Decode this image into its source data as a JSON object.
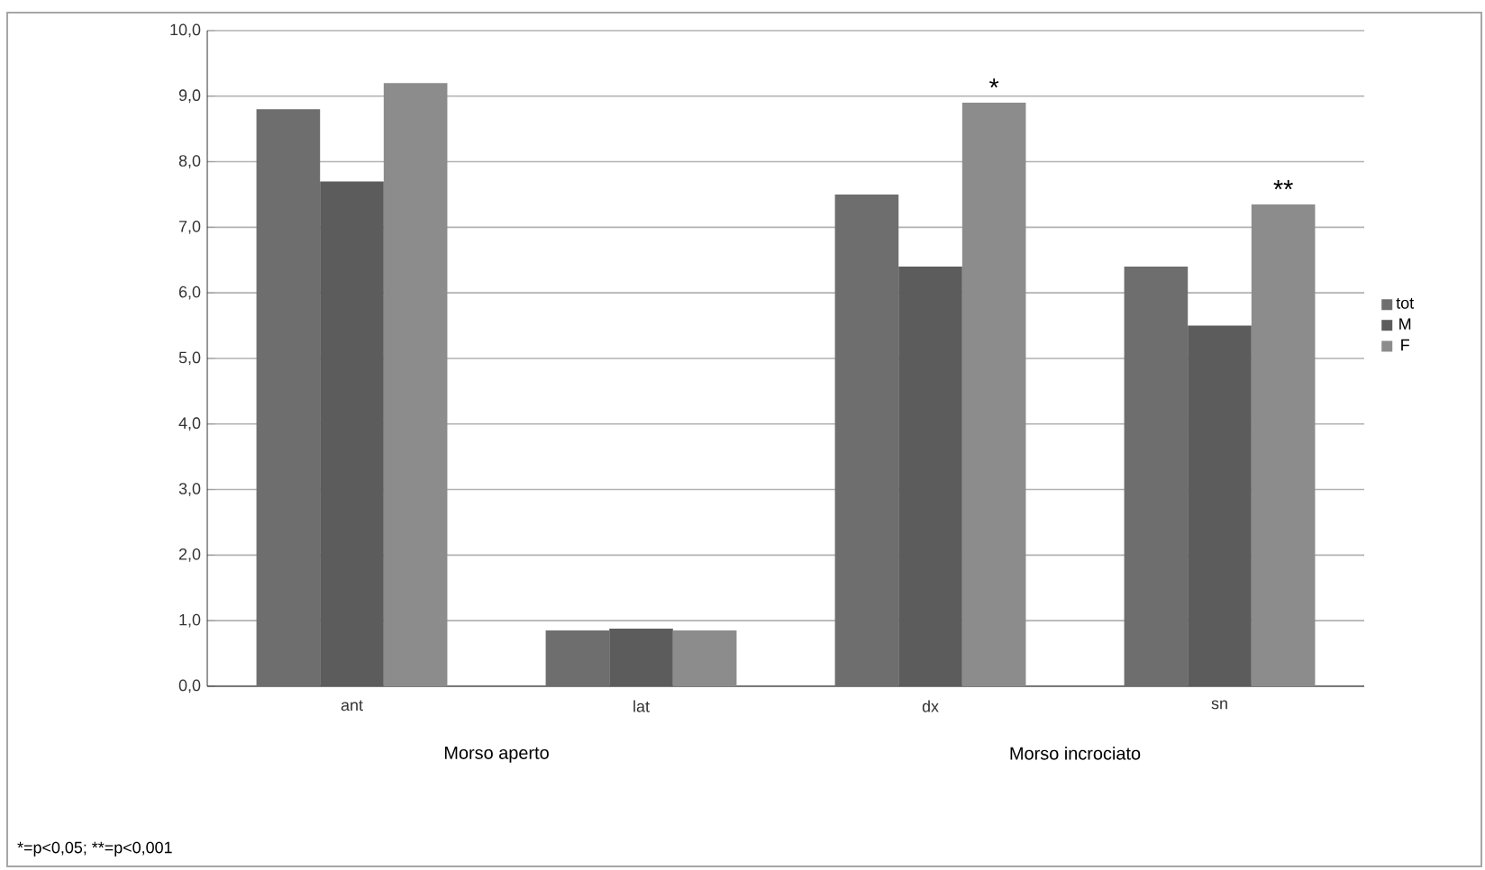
{
  "chart_data": {
    "type": "bar",
    "categories": [
      "ant",
      "lat",
      "dx",
      "sn"
    ],
    "series": [
      {
        "name": "tot",
        "color": "#6e6e6e",
        "values": [
          8.8,
          0.85,
          7.5,
          6.4
        ]
      },
      {
        "name": "M",
        "color": "#5c5c5c",
        "values": [
          7.7,
          0.88,
          6.4,
          5.5
        ]
      },
      {
        "name": "F",
        "color": "#8c8c8c",
        "values": [
          9.2,
          0.85,
          8.9,
          7.35
        ]
      }
    ],
    "ylim": [
      0,
      10
    ],
    "yticks": [
      {
        "value": 0,
        "label": "0,0"
      },
      {
        "value": 1,
        "label": "1,0"
      },
      {
        "value": 2,
        "label": "2,0"
      },
      {
        "value": 3,
        "label": "3,0"
      },
      {
        "value": 4,
        "label": "4,0"
      },
      {
        "value": 5,
        "label": "5,0"
      },
      {
        "value": 6,
        "label": "6,0"
      },
      {
        "value": 7,
        "label": "7,0"
      },
      {
        "value": 8,
        "label": "8,0"
      },
      {
        "value": 9,
        "label": "9,0"
      },
      {
        "value": 10,
        "label": "10,0"
      }
    ],
    "grid": "y",
    "legend": "right",
    "annotations": [
      "*",
      "**",
      "Morso aperto",
      "Morso incrociato",
      "*=p<0,05; **=p<0,001"
    ]
  }
}
